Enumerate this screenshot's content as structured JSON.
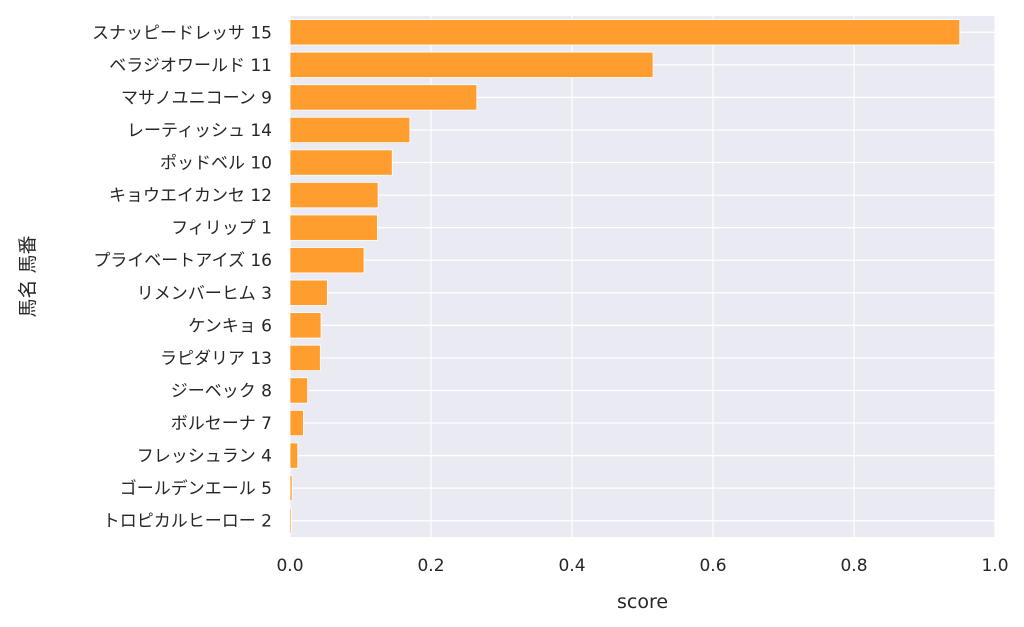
{
  "chart_data": {
    "type": "bar",
    "orientation": "horizontal",
    "xlabel": "score",
    "ylabel": "馬名 馬番",
    "xlim": [
      0.0,
      1.0
    ],
    "xticks": [
      "0.0",
      "0.2",
      "0.4",
      "0.6",
      "0.8",
      "1.0"
    ],
    "grid": true,
    "bar_color": "#ff9d2e",
    "background_color": "#eaeaf2",
    "categories": [
      "スナッピードレッサ 15",
      "ベラジオワールド 11",
      "マサノユニコーン 9",
      "レーティッシュ 14",
      "ポッドベル 10",
      "キョウエイカンセ 12",
      "フィリップ 1",
      "プライベートアイズ 16",
      "リメンバーヒム 3",
      "ケンキョ 6",
      "ラピダリア 13",
      "ジーベック 8",
      "ボルセーナ 7",
      "フレッシュラン 4",
      "ゴールデンエール 5",
      "トロピカルヒーロー 2"
    ],
    "values": [
      0.95,
      0.515,
      0.265,
      0.17,
      0.145,
      0.125,
      0.124,
      0.105,
      0.053,
      0.044,
      0.043,
      0.025,
      0.019,
      0.011,
      0.003,
      0.002
    ]
  }
}
